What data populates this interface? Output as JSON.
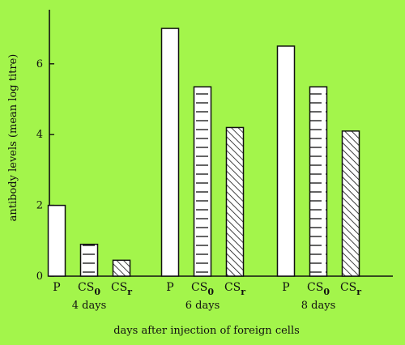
{
  "chart_data": {
    "type": "bar",
    "title": "",
    "ylabel": "antibody levels (mean log titre)",
    "xlabel": "days after injection of foreign cells",
    "ylim": [
      0,
      7.5
    ],
    "yticks": [
      0,
      2,
      4,
      6
    ],
    "grid": false,
    "groups": [
      {
        "label": "4 days",
        "bars": [
          {
            "label": "P",
            "value": 2.0,
            "pattern": "plain"
          },
          {
            "label": "CS0",
            "value": 0.9,
            "pattern": "horizontal"
          },
          {
            "label": "CSr",
            "value": 0.45,
            "pattern": "diagonal"
          }
        ]
      },
      {
        "label": "6 days",
        "bars": [
          {
            "label": "P",
            "value": 7.0,
            "pattern": "plain"
          },
          {
            "label": "CS0",
            "value": 5.35,
            "pattern": "horizontal"
          },
          {
            "label": "CSr",
            "value": 4.2,
            "pattern": "diagonal"
          }
        ]
      },
      {
        "label": "8 days",
        "bars": [
          {
            "label": "P",
            "value": 6.5,
            "pattern": "plain"
          },
          {
            "label": "CS0",
            "value": 5.35,
            "pattern": "horizontal"
          },
          {
            "label": "CSr",
            "value": 4.1,
            "pattern": "diagonal"
          }
        ]
      }
    ]
  },
  "colors": {
    "background": "#a3f54b",
    "bar_fill": "#ffffff",
    "ink": "#111111"
  }
}
